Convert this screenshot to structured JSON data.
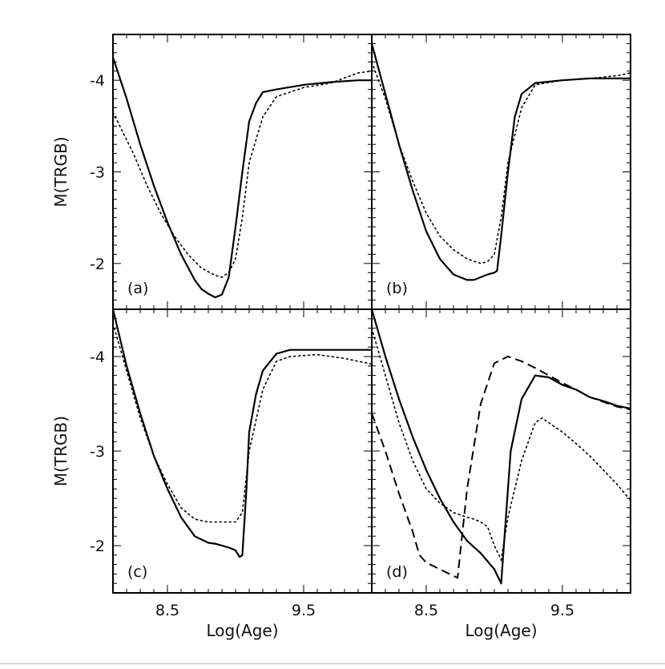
{
  "chart_data": [
    {
      "type": "line",
      "panel_label": "(a)",
      "xlabel": "",
      "ylabel": "M(TRGB)",
      "xlim": [
        8.1,
        10.0
      ],
      "ylim": [
        -1.5,
        -4.5
      ],
      "xticks": [
        8.5,
        9.5
      ],
      "xtick_labels": [
        "8.5",
        "9.5"
      ],
      "yticks": [
        -2,
        -3,
        -4
      ],
      "ytick_labels": [
        "-2",
        "-3",
        "-4"
      ],
      "show_xtick_labels": false,
      "show_ytick_labels": true,
      "series": [
        {
          "style": "solid",
          "x": [
            8.1,
            8.2,
            8.3,
            8.4,
            8.5,
            8.6,
            8.7,
            8.75,
            8.8,
            8.85,
            8.9,
            8.95,
            9.0,
            9.05,
            9.1,
            9.15,
            9.2,
            9.3,
            9.5,
            9.7,
            9.9,
            10.0
          ],
          "y": [
            -4.25,
            -3.8,
            -3.3,
            -2.85,
            -2.45,
            -2.1,
            -1.82,
            -1.72,
            -1.67,
            -1.63,
            -1.66,
            -1.85,
            -2.4,
            -3.0,
            -3.55,
            -3.75,
            -3.87,
            -3.9,
            -3.95,
            -3.98,
            -4.0,
            -4.0
          ]
        },
        {
          "style": "dotted",
          "x": [
            8.1,
            8.15,
            8.25,
            8.35,
            8.45,
            8.55,
            8.65,
            8.75,
            8.85,
            8.9,
            8.95,
            9.0,
            9.05,
            9.1,
            9.2,
            9.3,
            9.5,
            9.7,
            9.9,
            10.0
          ],
          "y": [
            -3.65,
            -3.5,
            -3.2,
            -2.85,
            -2.55,
            -2.3,
            -2.1,
            -1.95,
            -1.87,
            -1.85,
            -1.9,
            -2.05,
            -2.5,
            -3.1,
            -3.6,
            -3.82,
            -3.92,
            -3.97,
            -4.08,
            -4.1
          ]
        }
      ]
    },
    {
      "type": "line",
      "panel_label": "(b)",
      "xlabel": "",
      "ylabel": "",
      "xlim": [
        8.1,
        10.0
      ],
      "ylim": [
        -1.5,
        -4.5
      ],
      "xticks": [
        8.5,
        9.5
      ],
      "xtick_labels": [
        "8.5",
        "9.5"
      ],
      "yticks": [
        -2,
        -3,
        -4
      ],
      "ytick_labels": [
        "-2",
        "-3",
        "-4"
      ],
      "show_xtick_labels": false,
      "show_ytick_labels": false,
      "series": [
        {
          "style": "solid",
          "x": [
            8.1,
            8.2,
            8.3,
            8.4,
            8.5,
            8.6,
            8.7,
            8.8,
            8.85,
            8.9,
            8.95,
            9.0,
            9.02,
            9.05,
            9.1,
            9.15,
            9.2,
            9.3,
            9.5,
            9.7,
            9.9,
            10.0
          ],
          "y": [
            -4.4,
            -3.85,
            -3.3,
            -2.8,
            -2.35,
            -2.05,
            -1.88,
            -1.82,
            -1.82,
            -1.85,
            -1.88,
            -1.9,
            -1.92,
            -2.3,
            -3.0,
            -3.6,
            -3.85,
            -3.97,
            -4.0,
            -4.02,
            -4.02,
            -4.02
          ]
        },
        {
          "style": "dotted",
          "x": [
            8.1,
            8.2,
            8.3,
            8.4,
            8.5,
            8.6,
            8.7,
            8.8,
            8.9,
            8.95,
            9.0,
            9.05,
            9.1,
            9.2,
            9.3,
            9.5,
            9.7,
            9.9,
            10.0
          ],
          "y": [
            -4.2,
            -3.8,
            -3.3,
            -2.9,
            -2.55,
            -2.3,
            -2.15,
            -2.05,
            -2.0,
            -2.02,
            -2.1,
            -2.5,
            -3.1,
            -3.7,
            -3.95,
            -4.0,
            -4.02,
            -4.05,
            -4.08
          ]
        }
      ]
    },
    {
      "type": "line",
      "panel_label": "(c)",
      "xlabel": "Log(Age)",
      "ylabel": "M(TRGB)",
      "xlim": [
        8.1,
        10.0
      ],
      "ylim": [
        -1.5,
        -4.5
      ],
      "xticks": [
        8.5,
        9.5
      ],
      "xtick_labels": [
        "8.5",
        "9.5"
      ],
      "yticks": [
        -2,
        -3,
        -4
      ],
      "ytick_labels": [
        "-2",
        "-3",
        "-4"
      ],
      "show_xtick_labels": true,
      "show_ytick_labels": true,
      "series": [
        {
          "style": "solid",
          "x": [
            8.1,
            8.2,
            8.3,
            8.4,
            8.5,
            8.6,
            8.7,
            8.8,
            8.85,
            8.9,
            8.95,
            9.0,
            9.03,
            9.05,
            9.08,
            9.1,
            9.15,
            9.2,
            9.3,
            9.4,
            9.6,
            9.8,
            10.0
          ],
          "y": [
            -4.5,
            -3.9,
            -3.4,
            -2.95,
            -2.6,
            -2.3,
            -2.1,
            -2.03,
            -2.02,
            -2.0,
            -1.98,
            -1.95,
            -1.88,
            -1.9,
            -2.6,
            -3.2,
            -3.6,
            -3.85,
            -4.03,
            -4.07,
            -4.07,
            -4.07,
            -4.07
          ]
        },
        {
          "style": "dotted",
          "x": [
            8.1,
            8.2,
            8.3,
            8.4,
            8.5,
            8.6,
            8.7,
            8.8,
            8.9,
            9.0,
            9.05,
            9.1,
            9.2,
            9.3,
            9.4,
            9.6,
            9.8,
            9.9,
            10.0
          ],
          "y": [
            -4.35,
            -3.85,
            -3.35,
            -2.95,
            -2.65,
            -2.4,
            -2.28,
            -2.25,
            -2.25,
            -2.25,
            -2.35,
            -3.0,
            -3.65,
            -3.95,
            -4.0,
            -4.02,
            -3.98,
            -3.95,
            -3.92
          ]
        }
      ]
    },
    {
      "type": "line",
      "panel_label": "(d)",
      "xlabel": "Log(Age)",
      "ylabel": "",
      "xlim": [
        8.1,
        10.0
      ],
      "ylim": [
        -1.5,
        -4.5
      ],
      "xticks": [
        8.5,
        9.5
      ],
      "xtick_labels": [
        "8.5",
        "9.5"
      ],
      "yticks": [
        -2,
        -3,
        -4
      ],
      "ytick_labels": [
        "-2",
        "-3",
        "-4"
      ],
      "show_xtick_labels": true,
      "show_ytick_labels": false,
      "series": [
        {
          "style": "solid",
          "x": [
            8.1,
            8.2,
            8.3,
            8.4,
            8.5,
            8.6,
            8.7,
            8.8,
            8.9,
            9.0,
            9.05,
            9.08,
            9.12,
            9.2,
            9.3,
            9.4,
            9.5,
            9.6,
            9.7,
            9.8,
            9.9,
            10.0
          ],
          "y": [
            -4.5,
            -4.0,
            -3.55,
            -3.15,
            -2.8,
            -2.5,
            -2.25,
            -2.05,
            -1.92,
            -1.75,
            -1.6,
            -2.2,
            -3.0,
            -3.55,
            -3.8,
            -3.78,
            -3.7,
            -3.65,
            -3.57,
            -3.53,
            -3.48,
            -3.45
          ]
        },
        {
          "style": "dashed",
          "x": [
            8.1,
            8.2,
            8.3,
            8.4,
            8.45,
            8.5,
            8.6,
            8.7,
            8.73,
            8.8,
            8.9,
            9.0,
            9.1,
            9.2,
            9.3,
            9.4,
            9.5,
            9.6,
            9.7,
            9.8,
            9.9,
            10.0
          ],
          "y": [
            -3.4,
            -3.0,
            -2.55,
            -2.15,
            -1.9,
            -1.82,
            -1.75,
            -1.68,
            -1.66,
            -2.6,
            -3.5,
            -3.93,
            -4.0,
            -3.95,
            -3.88,
            -3.8,
            -3.72,
            -3.65,
            -3.57,
            -3.52,
            -3.47,
            -3.44
          ]
        },
        {
          "style": "dotted",
          "x": [
            8.1,
            8.2,
            8.3,
            8.4,
            8.5,
            8.6,
            8.7,
            8.8,
            8.85,
            8.9,
            8.95,
            9.0,
            9.05,
            9.1,
            9.2,
            9.3,
            9.35,
            9.4,
            9.5,
            9.6,
            9.7,
            9.8,
            9.9,
            10.0
          ],
          "y": [
            -4.3,
            -3.8,
            -3.3,
            -2.9,
            -2.6,
            -2.45,
            -2.35,
            -2.3,
            -2.28,
            -2.25,
            -2.2,
            -2.0,
            -1.85,
            -2.3,
            -2.9,
            -3.3,
            -3.35,
            -3.3,
            -3.2,
            -3.08,
            -2.95,
            -2.8,
            -2.65,
            -2.48
          ]
        }
      ]
    }
  ]
}
